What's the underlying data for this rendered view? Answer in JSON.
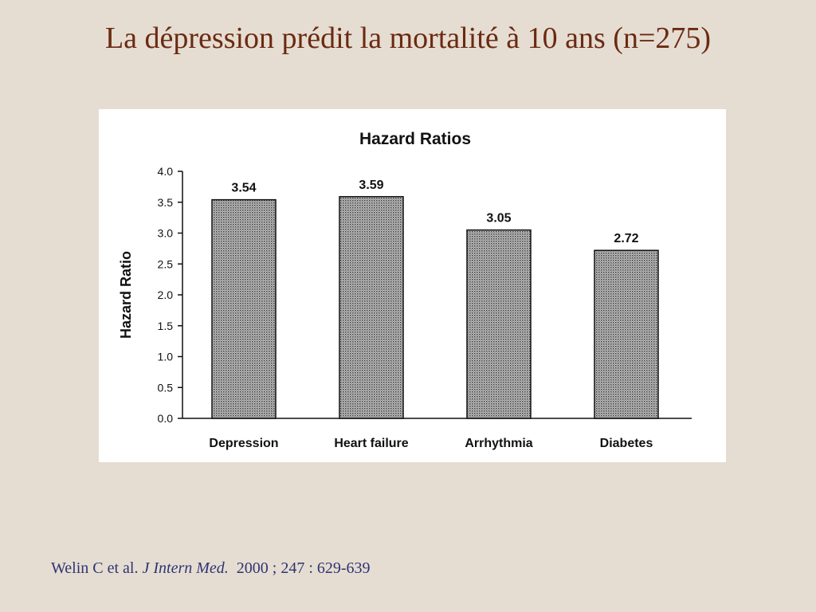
{
  "slide": {
    "title": "La dépression prédit la mortalité à 10 ans (n=275)"
  },
  "citation": {
    "authors": "Welin C et al.",
    "journal": "J Intern Med.",
    "details": "2000 ; 247 : 629-639"
  },
  "chart_data": {
    "type": "bar",
    "title": "Hazard Ratios",
    "xlabel": "",
    "ylabel": "Hazard Ratio",
    "categories": [
      "Depression",
      "Heart failure",
      "Arrhythmia",
      "Diabetes"
    ],
    "values": [
      3.54,
      3.59,
      3.05,
      2.72
    ],
    "data_labels": [
      "3.54",
      "3.59",
      "3.05",
      "2.72"
    ],
    "ylim": [
      0,
      4.0
    ],
    "yticks": [
      "0.0",
      "0.5",
      "1.0",
      "1.5",
      "2.0",
      "2.5",
      "3.0",
      "3.5",
      "4.0"
    ],
    "grid": false,
    "legend": "none",
    "bar_fill": "#8a8a8a",
    "axis_color": "#111111"
  }
}
